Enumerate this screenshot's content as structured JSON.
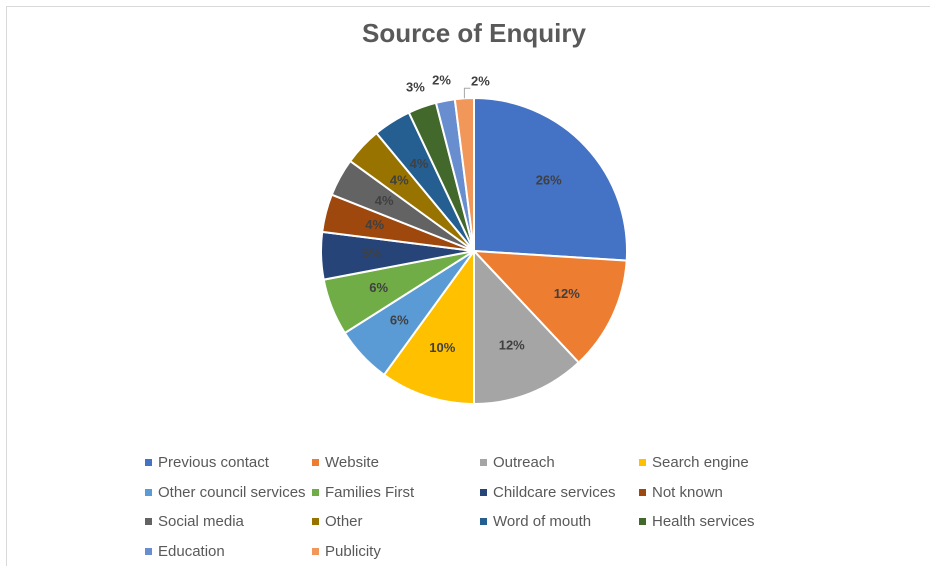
{
  "chart_data": {
    "type": "pie",
    "title": "Source of Enquiry",
    "slices": [
      {
        "label": "Previous contact",
        "value": 26,
        "display": "26%",
        "color": "#4472C4"
      },
      {
        "label": "Website",
        "value": 12,
        "display": "12%",
        "color": "#ED7D31"
      },
      {
        "label": "Outreach",
        "value": 12,
        "display": "12%",
        "color": "#A5A5A5"
      },
      {
        "label": "Search engine",
        "value": 10,
        "display": "10%",
        "color": "#FFC000"
      },
      {
        "label": "Other council services",
        "value": 6,
        "display": "6%",
        "color": "#5B9BD5"
      },
      {
        "label": "Families First",
        "value": 6,
        "display": "6%",
        "color": "#70AD47"
      },
      {
        "label": "Childcare services",
        "value": 5,
        "display": "5%",
        "color": "#264478"
      },
      {
        "label": "Not known",
        "value": 4,
        "display": "4%",
        "color": "#9E480E"
      },
      {
        "label": "Social media",
        "value": 4,
        "display": "4%",
        "color": "#636363"
      },
      {
        "label": "Other",
        "value": 4,
        "display": "4%",
        "color": "#997300"
      },
      {
        "label": "Word of mouth",
        "value": 4,
        "display": "4%",
        "color": "#255E91"
      },
      {
        "label": "Health services",
        "value": 3,
        "display": "3%",
        "color": "#43682B"
      },
      {
        "label": "Education",
        "value": 2,
        "display": "2%",
        "color": "#698ED0"
      },
      {
        "label": "Publicity",
        "value": 2,
        "display": "2%",
        "color": "#F1975A"
      }
    ],
    "legend_position": "bottom"
  }
}
